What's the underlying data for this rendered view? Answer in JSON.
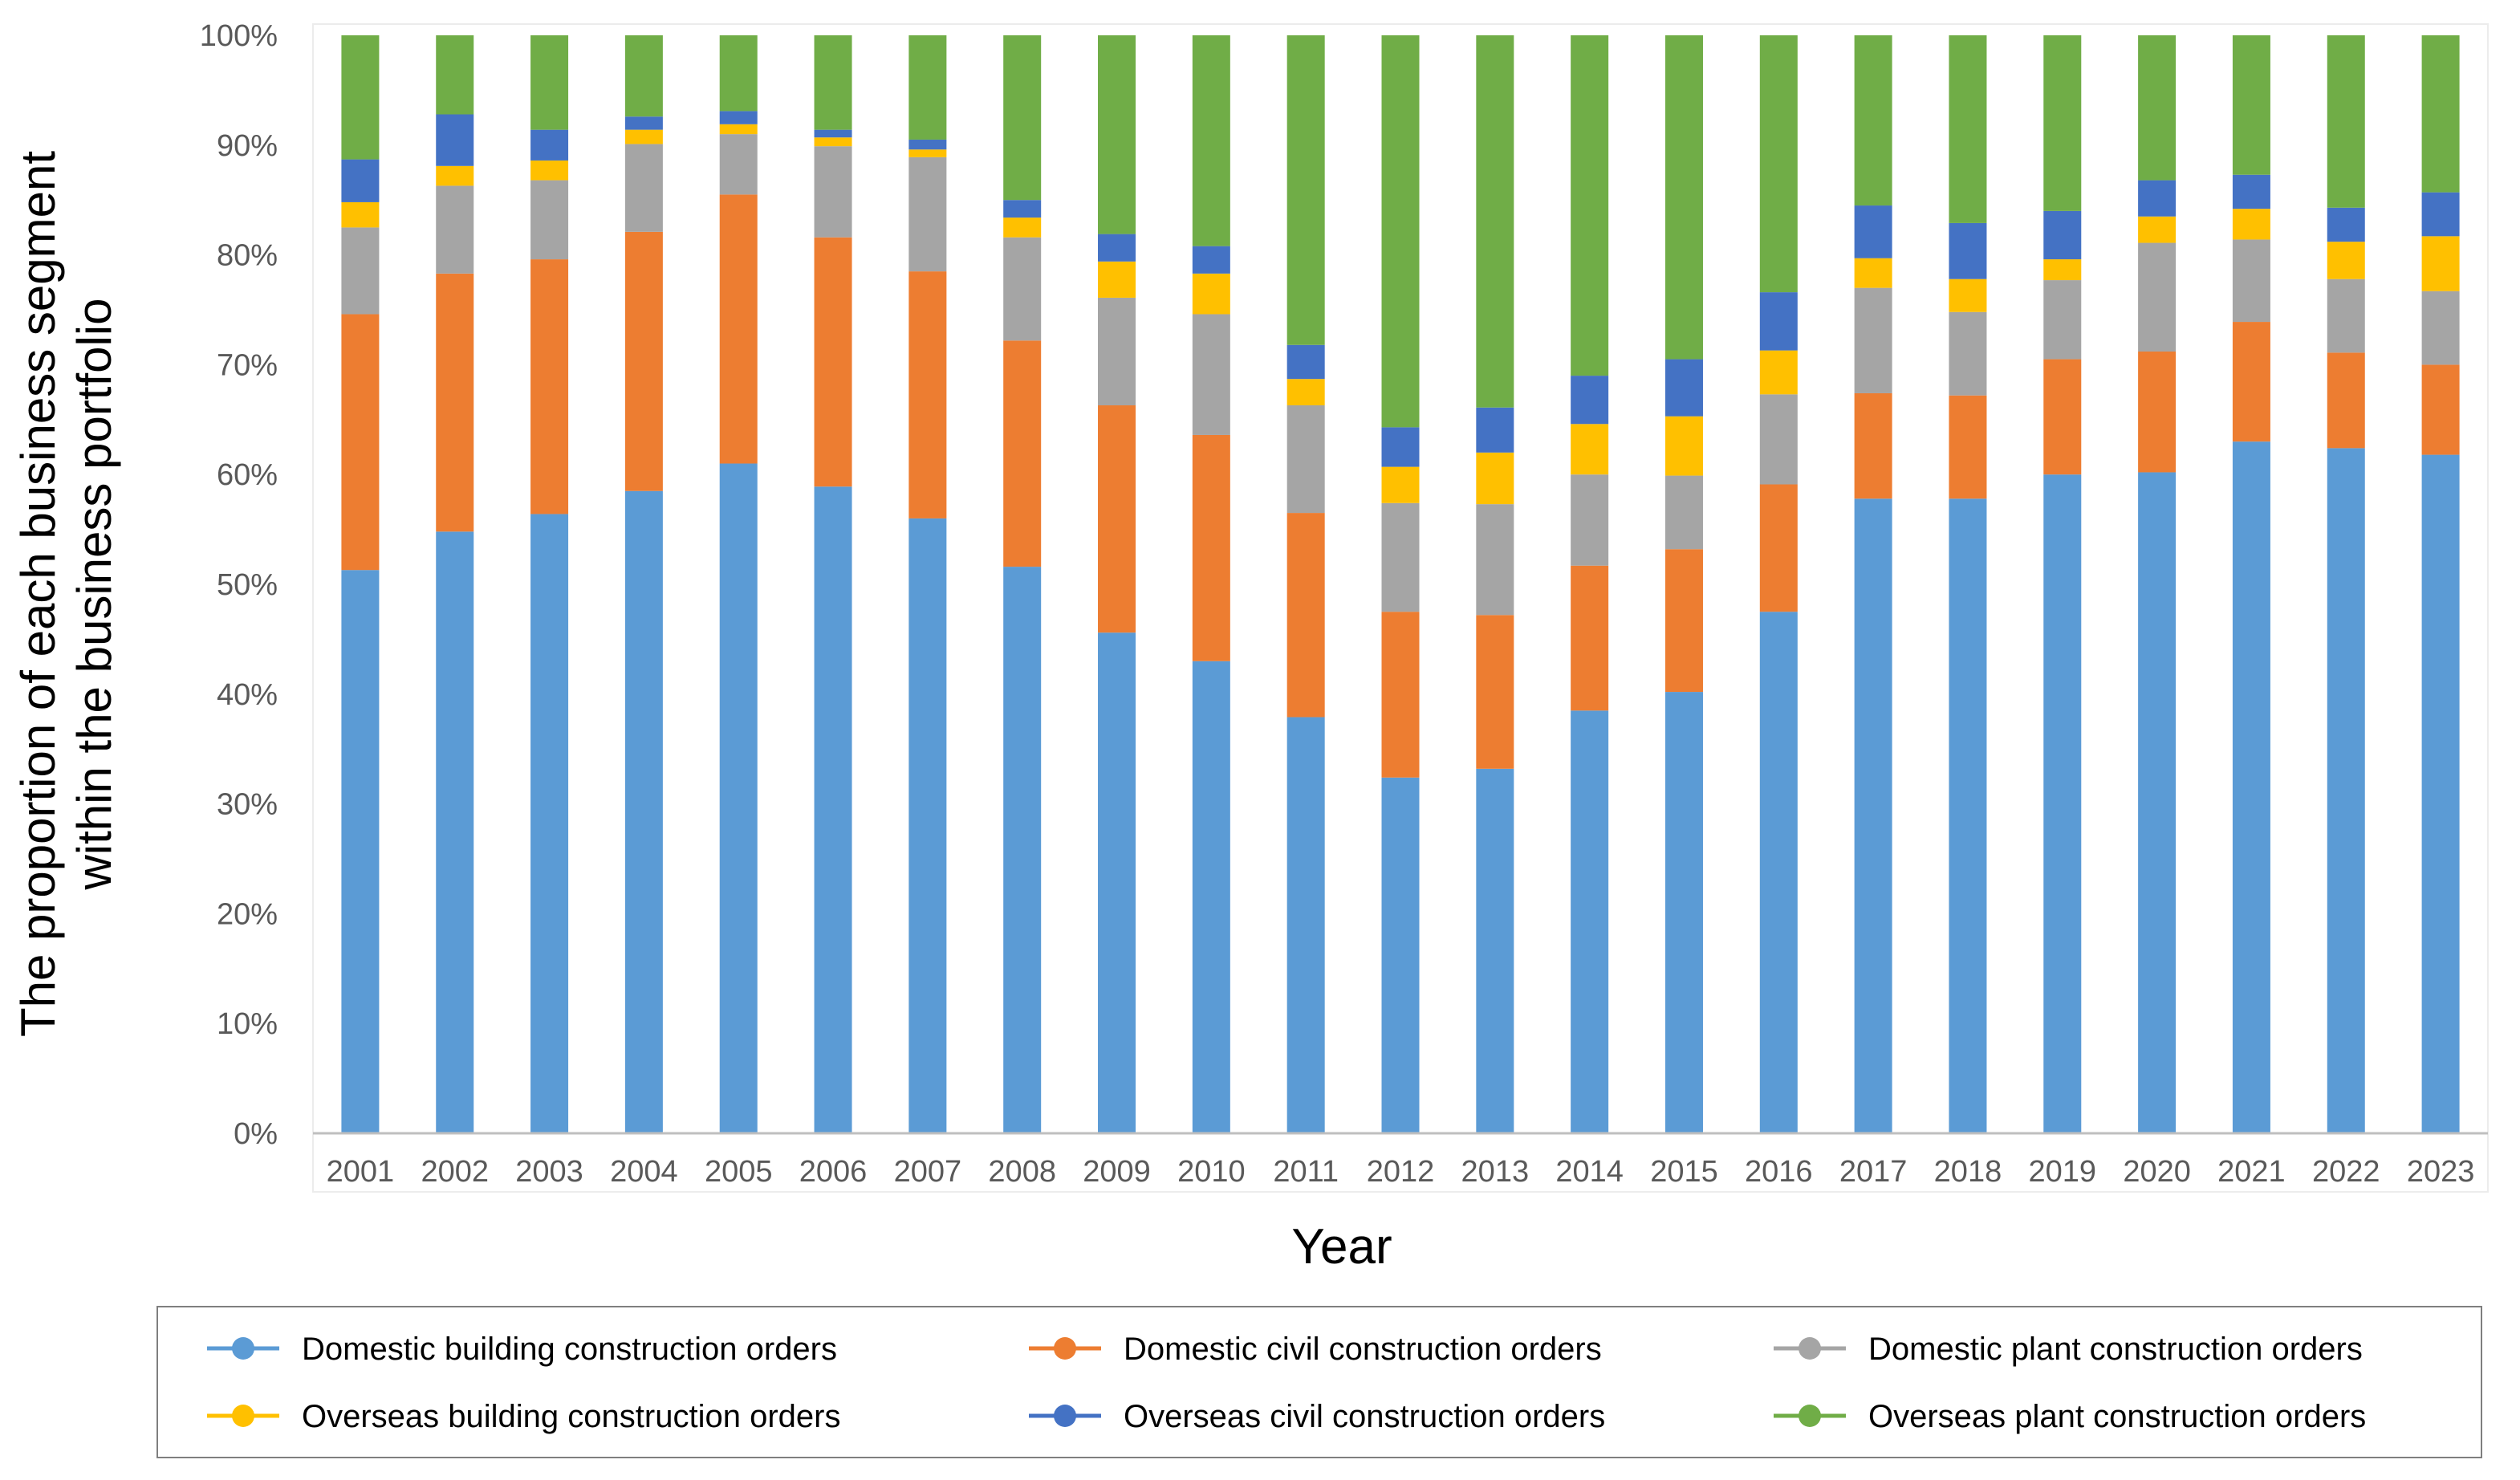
{
  "chart_data": {
    "type": "bar",
    "stacked": true,
    "title": "",
    "xlabel": "Year",
    "ylabel_lines": [
      "The proportion of each business segment",
      "within the business portfolio"
    ],
    "ylim": [
      0,
      100
    ],
    "y_ticks": [
      "0%",
      "10%",
      "20%",
      "30%",
      "40%",
      "50%",
      "60%",
      "70%",
      "80%",
      "90%",
      "100%"
    ],
    "grid": false,
    "legend_position": "bottom",
    "categories": [
      "2001",
      "2002",
      "2003",
      "2004",
      "2005",
      "2006",
      "2007",
      "2008",
      "2009",
      "2010",
      "2011",
      "2012",
      "2013",
      "2014",
      "2015",
      "2016",
      "2017",
      "2018",
      "2019",
      "2020",
      "2021",
      "2022",
      "2023"
    ],
    "series": [
      {
        "name": "Domestic building construction orders",
        "color": "#5B9BD5",
        "values": [
          51.3,
          54.8,
          56.4,
          58.5,
          61.0,
          58.9,
          56.0,
          51.6,
          45.6,
          43.0,
          37.9,
          32.4,
          33.2,
          38.5,
          40.2,
          47.5,
          57.8,
          57.8,
          60.0,
          60.2,
          63.0,
          62.4,
          61.8
        ]
      },
      {
        "name": "Domestic civil construction orders",
        "color": "#ED7D31",
        "values": [
          23.3,
          23.5,
          23.2,
          23.6,
          24.5,
          22.7,
          22.5,
          20.6,
          20.7,
          20.6,
          18.6,
          15.1,
          14.0,
          13.2,
          13.0,
          11.6,
          9.6,
          9.4,
          10.5,
          11.0,
          10.9,
          8.7,
          8.2
        ]
      },
      {
        "name": "Domestic plant construction orders",
        "color": "#A5A5A5",
        "values": [
          7.9,
          8.0,
          7.2,
          8.0,
          5.5,
          8.3,
          10.4,
          9.4,
          9.8,
          11.0,
          9.8,
          9.9,
          10.1,
          8.3,
          6.7,
          8.2,
          9.6,
          7.6,
          7.2,
          9.9,
          7.5,
          6.7,
          6.7
        ]
      },
      {
        "name": "Overseas building construction orders",
        "color": "#FFC000",
        "values": [
          2.3,
          1.8,
          1.8,
          1.3,
          0.9,
          0.8,
          0.7,
          1.8,
          3.3,
          3.7,
          2.4,
          3.3,
          4.7,
          4.6,
          5.4,
          4.0,
          2.7,
          3.0,
          1.9,
          2.4,
          2.8,
          3.4,
          5.0
        ]
      },
      {
        "name": "Overseas civil construction orders",
        "color": "#4472C4",
        "values": [
          3.9,
          4.7,
          2.8,
          1.2,
          1.2,
          0.7,
          0.9,
          1.6,
          2.5,
          2.5,
          3.1,
          3.6,
          4.1,
          4.4,
          5.2,
          5.3,
          4.8,
          5.1,
          4.4,
          3.3,
          3.1,
          3.1,
          4.0
        ]
      },
      {
        "name": "Overseas plant construction orders",
        "color": "#70AD47",
        "values": [
          11.3,
          7.2,
          8.6,
          7.4,
          6.9,
          8.6,
          9.5,
          15.0,
          18.1,
          19.2,
          28.2,
          35.7,
          33.9,
          31.0,
          29.5,
          23.4,
          15.5,
          17.1,
          16.0,
          13.2,
          12.7,
          15.7,
          14.3
        ]
      }
    ]
  }
}
